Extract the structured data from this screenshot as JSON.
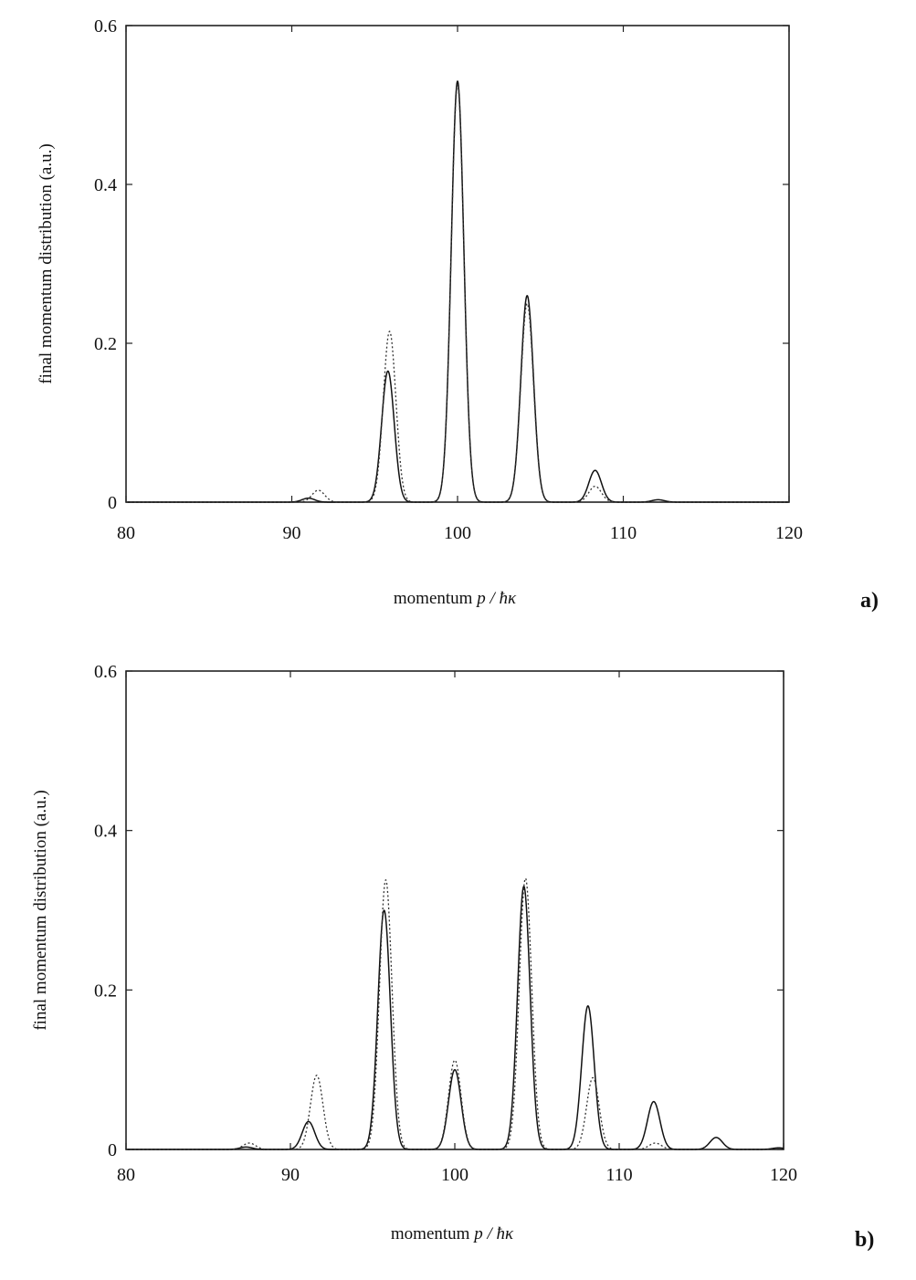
{
  "chart_data": [
    {
      "type": "line",
      "panel_label": "a)",
      "xlabel_prefix": "momentum ",
      "xlabel_var": "p / ħκ",
      "ylabel": "final momentum distribution (a.u.)",
      "xlim": [
        80,
        120
      ],
      "ylim": [
        0,
        0.6
      ],
      "x_ticks": [
        80,
        90,
        100,
        110,
        120
      ],
      "x_tick_labels": [
        "80",
        "90",
        "100",
        "110",
        "120"
      ],
      "y_ticks": [
        0,
        0.2,
        0.4,
        0.6
      ],
      "y_tick_labels": [
        "0",
        "0.2",
        "0.4",
        "0.6"
      ],
      "grid": false,
      "peak_width": 0.38,
      "series": [
        {
          "style": "solid",
          "peaks": [
            {
              "x": 91.0,
              "y": 0.005
            },
            {
              "x": 95.8,
              "y": 0.165
            },
            {
              "x": 100.0,
              "y": 0.53
            },
            {
              "x": 104.2,
              "y": 0.26
            },
            {
              "x": 108.3,
              "y": 0.04
            },
            {
              "x": 112.1,
              "y": 0.003
            }
          ]
        },
        {
          "style": "dashed",
          "peaks": [
            {
              "x": 91.6,
              "y": 0.015
            },
            {
              "x": 95.9,
              "y": 0.215
            },
            {
              "x": 100.0,
              "y": 0.525
            },
            {
              "x": 104.2,
              "y": 0.25
            },
            {
              "x": 108.3,
              "y": 0.02
            }
          ]
        }
      ]
    },
    {
      "type": "line",
      "panel_label": "b)",
      "xlabel_prefix": "momentum ",
      "xlabel_var": "p / ħκ",
      "ylabel": "final momentum distribution (a.u.)",
      "xlim": [
        80,
        120
      ],
      "ylim": [
        0,
        0.6
      ],
      "x_ticks": [
        80,
        90,
        100,
        110,
        120
      ],
      "x_tick_labels": [
        "80",
        "90",
        "100",
        "110",
        "120"
      ],
      "y_ticks": [
        0,
        0.2,
        0.4,
        0.6
      ],
      "y_tick_labels": [
        "0",
        "0.2",
        "0.4",
        "0.6"
      ],
      "grid": false,
      "peak_width": 0.38,
      "series": [
        {
          "style": "solid",
          "peaks": [
            {
              "x": 87.3,
              "y": 0.003
            },
            {
              "x": 91.1,
              "y": 0.035
            },
            {
              "x": 95.7,
              "y": 0.3
            },
            {
              "x": 100.0,
              "y": 0.1
            },
            {
              "x": 104.2,
              "y": 0.33
            },
            {
              "x": 108.1,
              "y": 0.18
            },
            {
              "x": 112.1,
              "y": 0.06
            },
            {
              "x": 115.9,
              "y": 0.015
            },
            {
              "x": 119.7,
              "y": 0.002
            }
          ]
        },
        {
          "style": "dashed",
          "peaks": [
            {
              "x": 87.5,
              "y": 0.008
            },
            {
              "x": 91.6,
              "y": 0.093
            },
            {
              "x": 95.8,
              "y": 0.338
            },
            {
              "x": 100.0,
              "y": 0.112
            },
            {
              "x": 104.3,
              "y": 0.34
            },
            {
              "x": 108.4,
              "y": 0.09
            },
            {
              "x": 112.2,
              "y": 0.008
            }
          ]
        }
      ]
    }
  ]
}
